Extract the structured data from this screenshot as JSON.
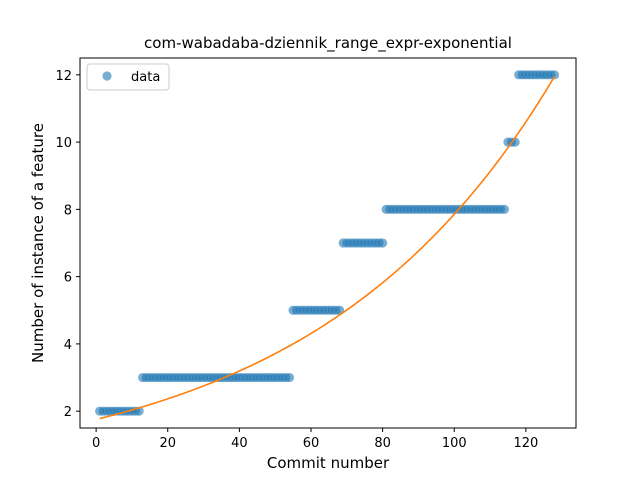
{
  "chart_data": {
    "type": "scatter",
    "title": "com-wabadaba-dziennik_range_expr-exponential",
    "xlabel": "Commit number",
    "ylabel": "Number of instance of a feature",
    "xlim": [
      -4.5,
      134
    ],
    "ylim": [
      1.5,
      12.5
    ],
    "xticks": [
      0,
      20,
      40,
      60,
      80,
      100,
      120
    ],
    "yticks": [
      2,
      4,
      6,
      8,
      10,
      12
    ],
    "grid": false,
    "legend_position": "top-left",
    "series": [
      {
        "name": "data",
        "kind": "scatter",
        "color": "#1f77b4",
        "alpha": 0.6,
        "segments": [
          {
            "x_start": 1,
            "x_end": 12,
            "y": 2
          },
          {
            "x_start": 13,
            "x_end": 54,
            "y": 3
          },
          {
            "x_start": 55,
            "x_end": 68,
            "y": 5
          },
          {
            "x_start": 69,
            "x_end": 80,
            "y": 7
          },
          {
            "x_start": 81,
            "x_end": 114,
            "y": 8
          },
          {
            "x_start": 115,
            "x_end": 117,
            "y": 10
          },
          {
            "x_start": 118,
            "x_end": 128,
            "y": 12
          }
        ]
      },
      {
        "kind": "line",
        "color": "#ff7f0e",
        "curve": "exponential",
        "x_range": [
          1,
          128
        ],
        "y_at_start": 1.78,
        "y_at_end": 11.95
      }
    ]
  }
}
